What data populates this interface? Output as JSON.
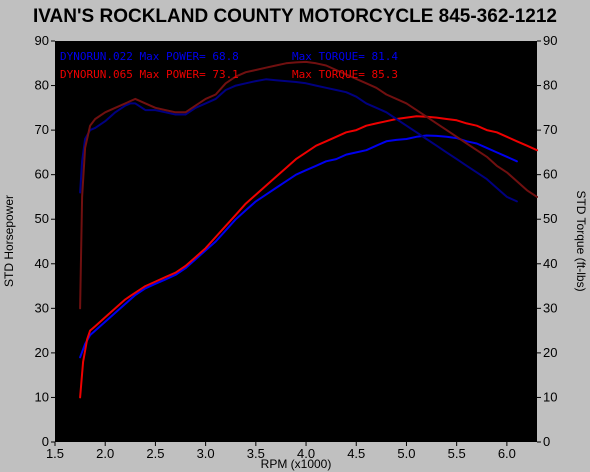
{
  "chart_data": {
    "type": "line",
    "title": "IVAN'S ROCKLAND COUNTY MOTORCYCLE 845-362-1212",
    "xlabel": "RPM (x1000)",
    "ylabel_left": "STD Horsepower",
    "ylabel_right": "STD Torque (ft-lbs)",
    "xlim": [
      1.5,
      6.3
    ],
    "ylim": [
      0,
      90
    ],
    "x_ticks": [
      "1.5",
      "2.0",
      "2.5",
      "3.0",
      "3.5",
      "4.0",
      "4.5",
      "5.0",
      "5.5",
      "6.0"
    ],
    "x_tick_values": [
      1.5,
      2.0,
      2.5,
      3.0,
      3.5,
      4.0,
      4.5,
      5.0,
      5.5,
      6.0
    ],
    "y_ticks": [
      "0",
      "10",
      "20",
      "30",
      "40",
      "50",
      "60",
      "70",
      "80",
      "90"
    ],
    "y_tick_values": [
      0,
      10,
      20,
      30,
      40,
      50,
      60,
      70,
      80,
      90
    ],
    "grid": false,
    "legend": [
      {
        "label": "DYNORUN.022  Max POWER= 68.8",
        "color": "#0000ee"
      },
      {
        "label": "Max TORQUE= 81.4",
        "color": "#0000ee"
      },
      {
        "label": "DYNORUN.065  Max POWER= 73.1",
        "color": "#ee0000"
      },
      {
        "label": "Max TORQUE= 85.3",
        "color": "#ee0000"
      }
    ],
    "series": [
      {
        "name": "DYNORUN.022 Power",
        "color": "#0000ee",
        "x": [
          1.75,
          1.8,
          1.85,
          1.9,
          2.0,
          2.1,
          2.2,
          2.3,
          2.4,
          2.5,
          2.6,
          2.7,
          2.8,
          2.9,
          3.0,
          3.1,
          3.2,
          3.3,
          3.4,
          3.5,
          3.6,
          3.7,
          3.8,
          3.9,
          4.0,
          4.1,
          4.2,
          4.3,
          4.4,
          4.5,
          4.6,
          4.7,
          4.8,
          4.9,
          5.0,
          5.1,
          5.2,
          5.3,
          5.4,
          5.5,
          5.6,
          5.7,
          5.8,
          5.9,
          6.0,
          6.1
        ],
        "y": [
          19,
          22,
          24,
          25,
          27,
          29,
          31,
          33,
          34.5,
          35.5,
          36.5,
          37.5,
          39,
          41,
          43,
          45,
          47.5,
          50,
          52,
          54,
          55.5,
          57,
          58.5,
          60,
          61,
          62,
          63,
          63.5,
          64.5,
          65,
          65.5,
          66.5,
          67.5,
          67.8,
          68,
          68.5,
          68.8,
          68.7,
          68.5,
          68.2,
          67.5,
          67,
          66,
          65,
          64,
          63
        ]
      },
      {
        "name": "DYNORUN.065 Power",
        "color": "#ee0000",
        "x": [
          1.75,
          1.78,
          1.82,
          1.85,
          1.9,
          2.0,
          2.1,
          2.2,
          2.3,
          2.4,
          2.5,
          2.6,
          2.7,
          2.8,
          2.9,
          3.0,
          3.1,
          3.2,
          3.3,
          3.4,
          3.5,
          3.6,
          3.7,
          3.8,
          3.9,
          4.0,
          4.1,
          4.2,
          4.3,
          4.4,
          4.5,
          4.6,
          4.7,
          4.8,
          4.9,
          5.0,
          5.1,
          5.2,
          5.3,
          5.4,
          5.5,
          5.6,
          5.7,
          5.8,
          5.9,
          6.0,
          6.1,
          6.2,
          6.3
        ],
        "y": [
          10,
          18,
          23,
          25,
          26,
          28,
          30,
          32,
          33.5,
          35,
          36,
          37,
          38,
          39.5,
          41.5,
          43.5,
          46,
          48.5,
          51,
          53.5,
          55.5,
          57.5,
          59.5,
          61.5,
          63.5,
          65,
          66.5,
          67.5,
          68.5,
          69.5,
          70,
          71,
          71.5,
          72,
          72.5,
          72.8,
          73.1,
          73,
          72.8,
          72.5,
          72.2,
          71.5,
          71,
          70,
          69.5,
          68.5,
          67.5,
          66.5,
          65.5
        ]
      },
      {
        "name": "DYNORUN.022 Torque",
        "color": "#000080",
        "x": [
          1.75,
          1.77,
          1.8,
          1.85,
          1.9,
          2.0,
          2.1,
          2.2,
          2.25,
          2.3,
          2.4,
          2.5,
          2.6,
          2.7,
          2.8,
          2.9,
          3.0,
          3.1,
          3.2,
          3.3,
          3.4,
          3.5,
          3.6,
          3.7,
          3.8,
          3.9,
          4.0,
          4.1,
          4.2,
          4.3,
          4.4,
          4.5,
          4.6,
          4.7,
          4.8,
          4.9,
          5.0,
          5.1,
          5.2,
          5.3,
          5.4,
          5.5,
          5.6,
          5.7,
          5.8,
          5.9,
          6.0,
          6.1
        ],
        "y": [
          56,
          63,
          68,
          70,
          70.5,
          72,
          74,
          75.5,
          76,
          76,
          74.5,
          74.5,
          74,
          73.5,
          73.5,
          75,
          76,
          77,
          79,
          80,
          80.5,
          81,
          81.4,
          81.2,
          81,
          80.8,
          80.5,
          80,
          79.5,
          79,
          78.5,
          77.5,
          76,
          75,
          74,
          72.5,
          71,
          69.5,
          68,
          66.5,
          65,
          63.5,
          62,
          60.5,
          59,
          57,
          55,
          54
        ]
      },
      {
        "name": "DYNORUN.065 Torque",
        "color": "#701010",
        "x": [
          1.75,
          1.77,
          1.8,
          1.85,
          1.9,
          2.0,
          2.1,
          2.2,
          2.3,
          2.4,
          2.5,
          2.6,
          2.7,
          2.8,
          2.9,
          3.0,
          3.1,
          3.2,
          3.3,
          3.4,
          3.5,
          3.6,
          3.7,
          3.8,
          3.9,
          4.0,
          4.1,
          4.2,
          4.3,
          4.4,
          4.5,
          4.6,
          4.7,
          4.8,
          4.9,
          5.0,
          5.1,
          5.2,
          5.3,
          5.4,
          5.5,
          5.6,
          5.7,
          5.8,
          5.9,
          6.0,
          6.1,
          6.2,
          6.3
        ],
        "y": [
          30,
          55,
          66,
          71,
          72.5,
          74,
          75,
          76,
          77,
          76,
          75,
          74.5,
          74,
          74,
          75.5,
          77,
          78,
          80.5,
          82,
          83,
          83.5,
          84,
          84.5,
          85,
          85.2,
          85.3,
          85,
          84.5,
          83.5,
          82.5,
          81.5,
          80.5,
          79.5,
          78,
          77,
          76,
          74.5,
          73,
          71.5,
          70,
          68.5,
          67,
          65.5,
          64,
          62,
          60.5,
          58.5,
          56.5,
          55
        ]
      }
    ]
  }
}
